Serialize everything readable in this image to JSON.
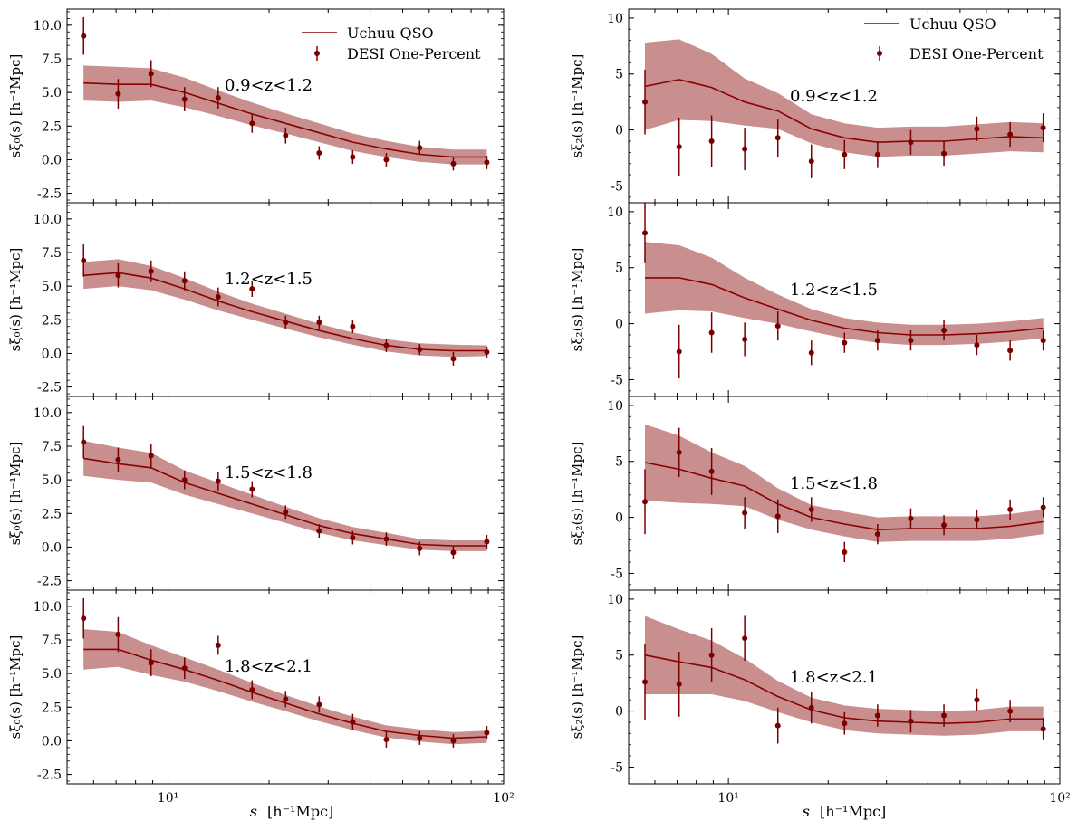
{
  "colors": {
    "model_line": "#8b0000",
    "model_band": "#c07a7a",
    "data_points": "#7a0000"
  },
  "legend": {
    "model_label": "Uchuu QSO",
    "data_label": "DESI One-Percent"
  },
  "axes": {
    "xlabel_main": "s",
    "xlabel_unit": "[h⁻¹Mpc]",
    "ylabel_left": "sξ₀(s) [h⁻¹Mpc]",
    "ylabel_right": "sξ₂(s) [h⁻¹Mpc]",
    "x_tick_labels": [
      "10¹",
      "10²"
    ]
  },
  "chart_data": {
    "type": "scatter",
    "x": [
      5.6,
      7.1,
      8.9,
      11.2,
      14.1,
      17.8,
      22.4,
      28.2,
      35.5,
      44.7,
      56.2,
      70.8,
      89.1
    ],
    "xlim": [
      5.0,
      100.0
    ],
    "xscale": "log",
    "xlabel": "s [h⁻¹Mpc]",
    "legend": [
      "Uchuu QSO",
      "DESI One-Percent"
    ],
    "monopole_ylim": [
      -3.2,
      11.2
    ],
    "monopole_yticks": [
      -2.5,
      0.0,
      2.5,
      5.0,
      7.5,
      10.0
    ],
    "quadrupole_ylim": [
      -6.5,
      10.8
    ],
    "quadrupole_yticks": [
      -5,
      0,
      5,
      10
    ],
    "panels": [
      {
        "ell": 0,
        "label": "0.9<z<1.2",
        "model": [
          5.7,
          5.6,
          5.6,
          5.0,
          4.2,
          3.4,
          2.7,
          2.0,
          1.3,
          0.8,
          0.4,
          0.2,
          0.2
        ],
        "band": [
          1.3,
          1.3,
          1.2,
          1.1,
          0.95,
          0.85,
          0.75,
          0.7,
          0.65,
          0.6,
          0.55,
          0.55,
          0.55
        ],
        "data": [
          9.2,
          4.9,
          6.4,
          4.5,
          4.6,
          2.7,
          1.8,
          0.5,
          0.2,
          0.0,
          0.9,
          -0.3,
          -0.2
        ],
        "err": [
          1.4,
          1.1,
          1.0,
          0.9,
          0.8,
          0.7,
          0.6,
          0.5,
          0.5,
          0.5,
          0.5,
          0.5,
          0.5
        ]
      },
      {
        "ell": 2,
        "label": "0.9<z<1.2",
        "model": [
          3.9,
          4.5,
          3.8,
          2.5,
          1.7,
          0.1,
          -0.7,
          -1.1,
          -1.0,
          -1.0,
          -0.8,
          -0.6,
          -0.7
        ],
        "band": [
          3.9,
          3.6,
          3.0,
          2.1,
          1.6,
          1.3,
          1.3,
          1.3,
          1.3,
          1.3,
          1.3,
          1.3,
          1.3
        ],
        "data": [
          2.5,
          -1.5,
          -1.0,
          -1.7,
          -0.7,
          -2.8,
          -2.2,
          -2.2,
          -1.1,
          -2.1,
          0.1,
          -0.4,
          0.2
        ],
        "err": [
          2.9,
          2.6,
          2.3,
          1.9,
          1.7,
          1.5,
          1.3,
          1.2,
          1.1,
          1.1,
          1.1,
          1.1,
          1.3
        ]
      },
      {
        "ell": 0,
        "label": "1.2<z<1.5",
        "model": [
          5.8,
          6.0,
          5.6,
          4.8,
          3.9,
          3.1,
          2.4,
          1.7,
          1.1,
          0.6,
          0.3,
          0.2,
          0.2
        ],
        "band": [
          1.0,
          1.0,
          0.9,
          0.8,
          0.7,
          0.6,
          0.55,
          0.5,
          0.45,
          0.45,
          0.45,
          0.45,
          0.4
        ],
        "data": [
          6.9,
          5.8,
          6.1,
          5.4,
          4.2,
          4.8,
          2.3,
          2.3,
          2.0,
          0.6,
          0.3,
          -0.4,
          0.1
        ],
        "err": [
          1.2,
          0.9,
          0.8,
          0.7,
          0.7,
          0.6,
          0.5,
          0.5,
          0.5,
          0.5,
          0.4,
          0.5,
          0.4
        ]
      },
      {
        "ell": 2,
        "label": "1.2<z<1.5",
        "model": [
          4.1,
          4.1,
          3.5,
          2.3,
          1.3,
          0.3,
          -0.4,
          -0.8,
          -1.0,
          -1.0,
          -0.9,
          -0.7,
          -0.4
        ],
        "band": [
          3.2,
          2.9,
          2.4,
          1.8,
          1.3,
          1.0,
          0.9,
          0.9,
          0.9,
          0.9,
          0.9,
          0.9,
          0.9
        ],
        "data": [
          8.1,
          -2.5,
          -0.8,
          -1.4,
          -0.2,
          -2.6,
          -1.7,
          -1.5,
          -1.5,
          -0.6,
          -1.9,
          -2.4,
          -1.5
        ],
        "err": [
          2.7,
          2.4,
          1.8,
          1.5,
          1.3,
          1.1,
          0.9,
          0.9,
          0.9,
          0.9,
          0.9,
          0.9,
          0.9
        ]
      },
      {
        "ell": 0,
        "label": "1.5<z<1.8",
        "model": [
          6.6,
          6.2,
          5.9,
          4.8,
          4.0,
          3.2,
          2.4,
          1.6,
          1.0,
          0.6,
          0.2,
          0.1,
          0.1
        ],
        "band": [
          1.3,
          1.2,
          1.1,
          0.9,
          0.8,
          0.7,
          0.6,
          0.55,
          0.5,
          0.45,
          0.4,
          0.4,
          0.4
        ],
        "data": [
          7.8,
          6.5,
          6.8,
          5.0,
          4.9,
          4.3,
          2.6,
          1.2,
          0.7,
          0.6,
          -0.1,
          -0.4,
          0.4
        ],
        "err": [
          1.2,
          0.9,
          0.9,
          0.7,
          0.7,
          0.6,
          0.5,
          0.5,
          0.5,
          0.5,
          0.5,
          0.5,
          0.5
        ]
      },
      {
        "ell": 2,
        "label": "1.5<z<1.8",
        "model": [
          4.9,
          4.3,
          3.5,
          2.8,
          1.2,
          0.0,
          -0.6,
          -1.1,
          -1.0,
          -1.0,
          -1.0,
          -0.8,
          -0.4
        ],
        "band": [
          3.4,
          3.0,
          2.3,
          1.8,
          1.4,
          1.1,
          1.1,
          1.1,
          1.1,
          1.1,
          1.1,
          1.1,
          1.1
        ],
        "data": [
          1.4,
          5.8,
          4.1,
          0.4,
          0.1,
          0.7,
          -3.1,
          -1.5,
          -0.1,
          -0.7,
          -0.2,
          0.7,
          0.9
        ],
        "err": [
          2.9,
          2.2,
          2.1,
          1.4,
          1.5,
          1.1,
          0.9,
          0.9,
          0.9,
          0.9,
          0.9,
          0.9,
          0.9
        ]
      },
      {
        "ell": 0,
        "label": "1.8<z<2.1",
        "model": [
          6.8,
          6.8,
          6.0,
          5.3,
          4.5,
          3.6,
          2.8,
          2.0,
          1.3,
          0.7,
          0.4,
          0.2,
          0.3
        ],
        "band": [
          1.5,
          1.3,
          1.1,
          0.9,
          0.8,
          0.7,
          0.6,
          0.55,
          0.5,
          0.45,
          0.45,
          0.45,
          0.45
        ],
        "data": [
          9.1,
          7.9,
          5.8,
          5.4,
          7.1,
          3.8,
          3.1,
          2.7,
          1.4,
          0.1,
          0.2,
          0.0,
          0.6
        ],
        "err": [
          1.5,
          1.3,
          1.0,
          0.8,
          0.7,
          0.7,
          0.6,
          0.6,
          0.6,
          0.6,
          0.5,
          0.5,
          0.5
        ]
      },
      {
        "ell": 2,
        "label": "1.8<z<2.1",
        "model": [
          5.0,
          4.4,
          3.9,
          2.8,
          1.3,
          0.1,
          -0.6,
          -0.9,
          -1.0,
          -1.1,
          -1.0,
          -0.7,
          -0.7
        ],
        "band": [
          3.5,
          2.9,
          2.4,
          1.9,
          1.4,
          1.1,
          1.1,
          1.1,
          1.1,
          1.1,
          1.1,
          1.1,
          1.1
        ],
        "data": [
          2.6,
          2.4,
          5.0,
          6.5,
          -1.3,
          0.3,
          -1.1,
          -0.4,
          -0.9,
          -0.4,
          1.0,
          0.0,
          -1.6
        ],
        "err": [
          3.4,
          2.9,
          2.4,
          2.0,
          1.6,
          1.4,
          1.0,
          1.0,
          1.0,
          1.0,
          1.0,
          1.0,
          1.0
        ]
      }
    ]
  }
}
